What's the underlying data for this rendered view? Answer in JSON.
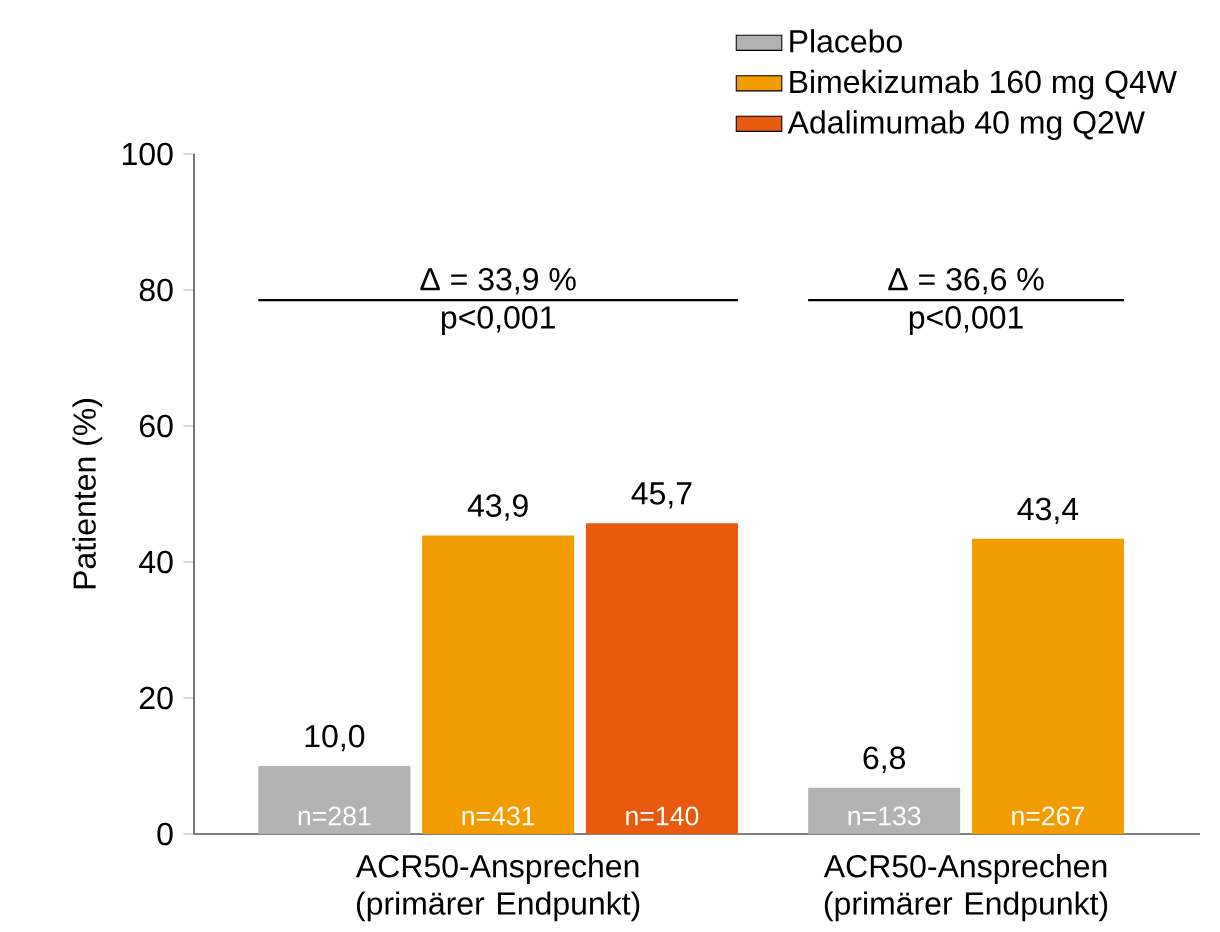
{
  "chart_data": {
    "type": "bar",
    "ylabel": "Patienten (%)",
    "categories": [
      "ACR50-Ansprechen (primärer Endpunkt)",
      "ACR50-Ansprechen (primärer Endpunkt)"
    ],
    "series": [
      {
        "name": "Placebo",
        "color": "#b2b2b2",
        "values": [
          10.0,
          6.8
        ],
        "value_labels": [
          "10,0",
          "6,8"
        ]
      },
      {
        "name": "Bimekizumab 160 mg Q4W",
        "color": "#f39c00",
        "values": [
          43.9,
          43.4
        ],
        "value_labels": [
          "43,9",
          "43,4"
        ]
      },
      {
        "name": "Adalimumab 40 mg Q2W",
        "color": "#e85a0e",
        "values": [
          45.7,
          null
        ],
        "value_labels": [
          "45,7",
          null
        ]
      }
    ],
    "ylim": [
      0,
      100
    ],
    "yticks": [
      0,
      20,
      40,
      60,
      80,
      100
    ],
    "grid": false,
    "legend": "top right",
    "annotations": [
      "Δ = 33,9 %",
      "p<0,001",
      "Δ = 36,6 %",
      "p<0,001",
      "n=281",
      "n=431",
      "n=140",
      "n=133",
      "n=267"
    ]
  }
}
